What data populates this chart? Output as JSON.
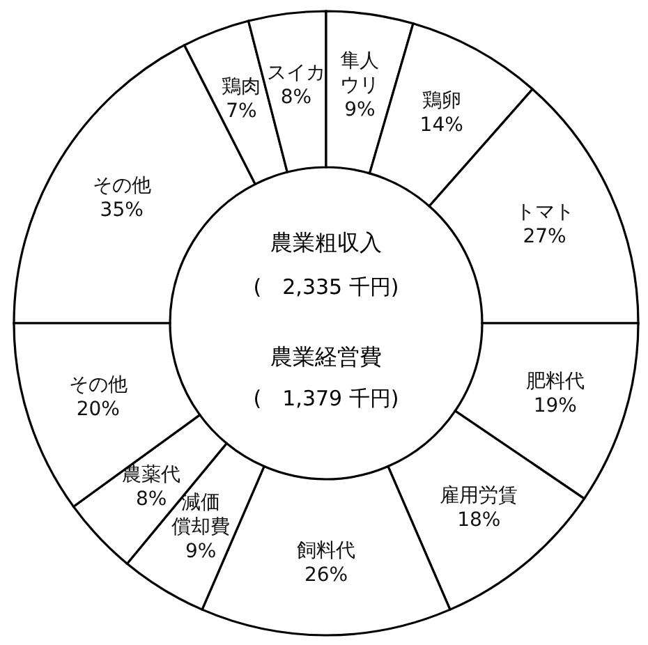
{
  "chart_data": [
    {
      "type": "donut",
      "title": "農業粗収入",
      "annotations": [
        "(　2,335 千円)"
      ],
      "categories": [
        "その他",
        "鶏肉",
        "スイカ",
        "隼人ウリ",
        "鶏卵",
        "トマト"
      ],
      "values": [
        35,
        7,
        8,
        9,
        14,
        27
      ],
      "value_labels": [
        "35%",
        "7%",
        "8%",
        "9%",
        "14%",
        "27%"
      ],
      "colors": [
        "#ffffff",
        "#ffffff",
        "#ffffff",
        "#ffffff",
        "#ffffff",
        "#ffffff"
      ]
    },
    {
      "type": "donut",
      "title": "農業経営費",
      "annotations": [
        "(　1,379 千円)"
      ],
      "categories": [
        "肥料代",
        "雇用労賃",
        "飼料代",
        "減価償却費",
        "農薬代",
        "その他"
      ],
      "values": [
        19,
        18,
        26,
        9,
        8,
        20
      ],
      "value_labels": [
        "19%",
        "18%",
        "26%",
        "9%",
        "8%",
        "20%"
      ],
      "colors": [
        "#ffffff",
        "#ffffff",
        "#ffffff",
        "#ffffff",
        "#ffffff",
        "#ffffff"
      ]
    }
  ]
}
